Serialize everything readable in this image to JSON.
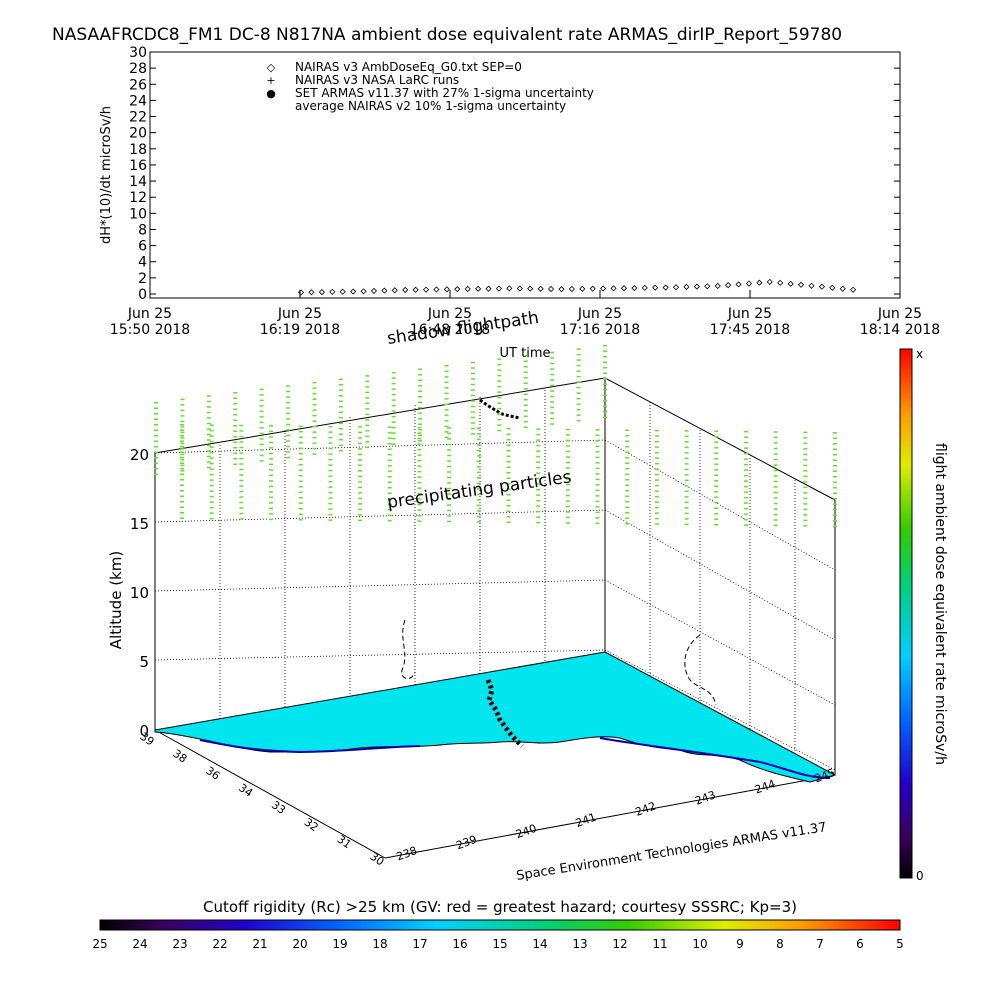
{
  "title": "NASAAFRCDC8_FM1 DC-8   N817NA ambient dose equivalent rate ARMAS_dirIP_Report_59780",
  "chart_data": [
    {
      "type": "scatter",
      "ylabel": "dH*(10)/dt microSv/h",
      "xlabel": "UT time",
      "ylim": [
        0,
        30
      ],
      "yticks": [
        "0",
        "2",
        "4",
        "6",
        "8",
        "10",
        "12",
        "14",
        "16",
        "18",
        "20",
        "22",
        "24",
        "26",
        "28",
        "30"
      ],
      "xticks": [
        {
          "line1": "Jun 25",
          "line2": "15:50 2018"
        },
        {
          "line1": "Jun 25",
          "line2": "16:19 2018"
        },
        {
          "line1": "Jun 25",
          "line2": "16:48 2018"
        },
        {
          "line1": "Jun 25",
          "line2": "17:16 2018"
        },
        {
          "line1": "Jun 25",
          "line2": "17:45 2018"
        },
        {
          "line1": "Jun 25",
          "line2": "18:14 2018"
        }
      ],
      "legend": [
        {
          "symbol": "◇",
          "label": "NAIRAS v3 AmbDoseEq_G0.txt SEP=0"
        },
        {
          "symbol": "+",
          "label": "NAIRAS v3 NASA LaRC runs"
        },
        {
          "symbol": "●",
          "label": "SET ARMAS v11.37 with 27% 1-sigma uncertainty"
        },
        {
          "symbol": "",
          "label": "average NAIRAS v2 10% 1-sigma uncertainty"
        }
      ],
      "legend_position": "top-left",
      "series": [
        {
          "name": "NAIRAS v3 AmbDoseEq_G0.txt SEP=0",
          "x_minutes": [
            0,
            10,
            20,
            30,
            40,
            50,
            60,
            70,
            80,
            90,
            100,
            108
          ],
          "values": [
            0.2,
            0.3,
            0.5,
            0.6,
            0.7,
            0.6,
            0.7,
            0.8,
            1.0,
            1.5,
            0.9,
            0.4
          ]
        }
      ]
    },
    {
      "type": "scatter",
      "zlabel": "Altitude (km)",
      "zticks": [
        "0",
        "5",
        "10",
        "15",
        "20"
      ],
      "lat_ticks": [
        "39",
        "38",
        "36",
        "34",
        "33",
        "32",
        "31",
        "30"
      ],
      "lon_ticks": [
        "238",
        "239",
        "240",
        "241",
        "242",
        "243",
        "244",
        "245"
      ],
      "annotations": [
        "shadow flightpath",
        "precipitating particles"
      ],
      "colorbar_label": "flight ambient dose equivalent rate microSv/h",
      "colorbar_top": "x",
      "colorbar_bottom": "0",
      "particle_color": "#66dd33",
      "ground_color": "#00e5ee"
    }
  ],
  "credit": "Space Environment Technologies ARMAS v11.37",
  "cutoff_bar": {
    "label": "Cutoff rigidity (Rc) >25 km (GV: red = greatest hazard; courtesy SSSRC; Kp=3)",
    "ticks": [
      "25",
      "24",
      "23",
      "22",
      "21",
      "20",
      "19",
      "18",
      "17",
      "16",
      "15",
      "14",
      "13",
      "12",
      "11",
      "10",
      "9",
      "8",
      "7",
      "6",
      "5"
    ]
  }
}
